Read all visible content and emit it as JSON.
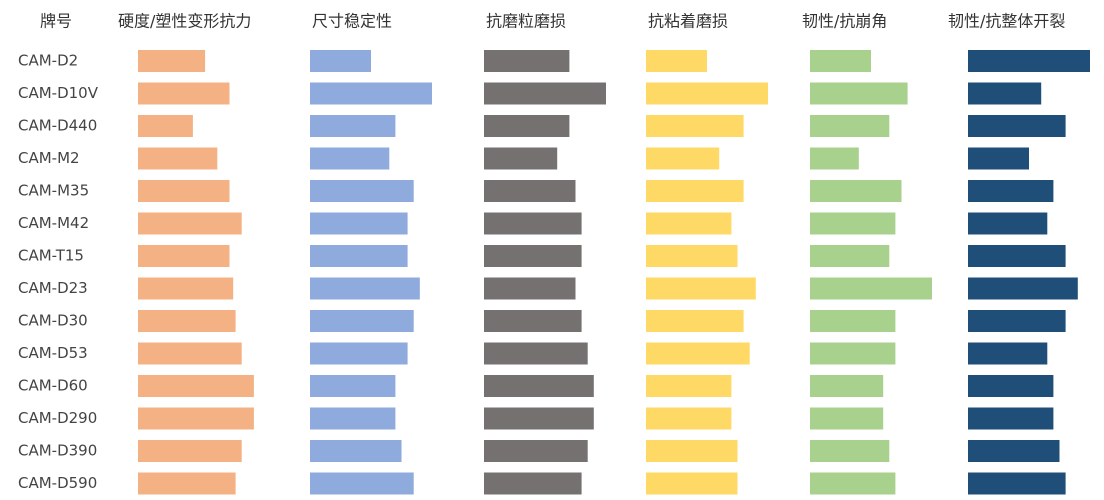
{
  "chart_data": {
    "type": "bar",
    "orientation": "horizontal",
    "category_header": "牌号",
    "categories": [
      "CAM-D2",
      "CAM-D10V",
      "CAM-D440",
      "CAM-M2",
      "CAM-M35",
      "CAM-M42",
      "CAM-T15",
      "CAM-D23",
      "CAM-D30",
      "CAM-D53",
      "CAM-D60",
      "CAM-D290",
      "CAM-D390",
      "CAM-D590"
    ],
    "series": [
      {
        "name": "硬度/塑性变形抗力",
        "color": "#F4B183",
        "values": [
          5.5,
          7.5,
          4.5,
          6.5,
          7.5,
          8.5,
          7.5,
          7.8,
          8,
          8.5,
          9.5,
          9.5,
          8.5,
          8
        ]
      },
      {
        "name": "尺寸稳定性",
        "color": "#8FAADC",
        "values": [
          5,
          10,
          7,
          6.5,
          8.5,
          8,
          8,
          9,
          8.5,
          8,
          7,
          7,
          7.5,
          8.5
        ]
      },
      {
        "name": "抗磨粒磨损",
        "color": "#767171",
        "values": [
          7,
          10,
          7,
          6,
          7.5,
          8,
          8,
          7.5,
          8,
          8.5,
          9,
          9,
          8.5,
          8
        ]
      },
      {
        "name": "抗粘着磨损",
        "color": "#FFD966",
        "values": [
          5,
          10,
          8,
          6,
          8,
          7,
          7.5,
          9,
          8,
          8.5,
          7,
          7,
          7.5,
          7.5
        ]
      },
      {
        "name": "韧性/抗崩角",
        "color": "#A9D18E",
        "values": [
          5,
          8,
          6.5,
          4,
          7.5,
          7,
          6.5,
          10,
          7,
          7,
          6,
          6,
          6.5,
          7
        ]
      },
      {
        "name": "韧性/抗整体开裂",
        "color": "#1F4E79",
        "values": [
          10,
          6,
          8,
          5,
          7,
          6.5,
          8,
          9,
          8,
          6.5,
          7,
          7,
          7.5,
          8
        ]
      }
    ],
    "xlim": [
      0,
      10
    ],
    "grid": false,
    "legend": "none"
  }
}
